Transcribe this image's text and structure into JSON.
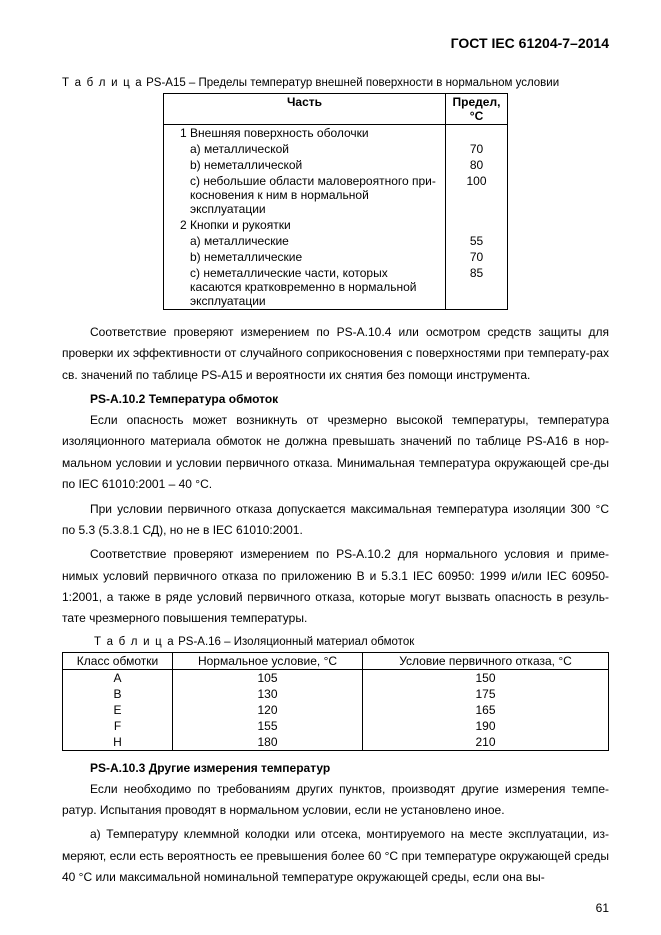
{
  "header": "ГОСТ IEC 61204-7–2014",
  "table1": {
    "caption_prefix": "Т а б л и ц а",
    "caption_rest": " PS-A15 – Пределы температур внешней поверхности в нормальном условии",
    "col_part": "Часть",
    "col_limit_1": "Предел,",
    "col_limit_2": "°C",
    "rows": [
      {
        "label": "1 Внешняя поверхность оболочки",
        "value": "",
        "indent": 1
      },
      {
        "label": "a) металлической",
        "value": "70",
        "indent": 2
      },
      {
        "label": "b) неметаллической",
        "value": "80",
        "indent": 2
      },
      {
        "label": "c) небольшие области маловероятного при-косновения к ним в нормальной эксплуатации",
        "value": "100",
        "indent": 2
      },
      {
        "label": "2 Кнопки и рукоятки",
        "value": "",
        "indent": 1
      },
      {
        "label": "a) металлические",
        "value": "55",
        "indent": 2
      },
      {
        "label": "b) неметаллические",
        "value": "70",
        "indent": 2
      },
      {
        "label": "c) неметаллические части, которых касаются кратковременно в нормальной эксплуатации",
        "value": "85",
        "indent": 2
      }
    ]
  },
  "para1": "Соответствие проверяют измерением по PS-A.10.4 или осмотром средств защиты для проверки их эффективности от случайного соприкосновения с поверхностями при температу-рах св. значений по таблице PS-A15 и вероятности их снятия без помощи инструмента.",
  "sec1_title": "PS-A.10.2 Температура обмоток",
  "para2": "Если опасность может возникнуть от чрезмерно высокой температуры, температура изоляционного материала обмоток не должна превышать значений по таблице PS-A16 в нор-мальном условии и условии первичного отказа. Минимальная температура окружающей сре-ды по IEC 61010:2001 – 40 °C.",
  "para3": "При условии первичного отказа допускается максимальная температура изоляции 300 °C по 5.3 (5.3.8.1 СД), но не в IEC 61010:2001.",
  "para4": "Соответствие проверяют измерением по PS-A.10.2 для нормального условия и приме-нимых условий первичного отказа по приложению B и 5.3.1 IEC 60950: 1999 и/или IEC 60950-1:2001, а также в ряде условий первичного отказа, которые могут вызвать опасность в резуль-тате чрезмерного повышения температуры.",
  "table2": {
    "caption_prefix": "Т а б л и ц а",
    "caption_rest": " PS-A.16 – Изоляционный материал обмоток",
    "col1": "Класс обмотки",
    "col2": "Нормальное условие, °C",
    "col3": "Условие первичного отказа, °C",
    "rows": [
      {
        "c": "A",
        "n": "105",
        "f": "150"
      },
      {
        "c": "B",
        "n": "130",
        "f": "175"
      },
      {
        "c": "E",
        "n": "120",
        "f": "165"
      },
      {
        "c": "F",
        "n": "155",
        "f": "190"
      },
      {
        "c": "H",
        "n": "180",
        "f": "210"
      }
    ]
  },
  "sec2_title": "PS-A.10.3 Другие измерения температур",
  "para5": "Если необходимо по требованиям других пунктов, производят другие измерения темпе-ратур. Испытания проводят в нормальном условии, если не установлено иное.",
  "para6": "a) Температуру клеммной колодки или отсека, монтируемого на месте эксплуатации, из-меряют, если есть вероятность ее превышения более 60 °C при температуре окружающей среды 40 °C или максимальной номинальной температуре окружающей среды, если она вы-",
  "page_number": "61"
}
